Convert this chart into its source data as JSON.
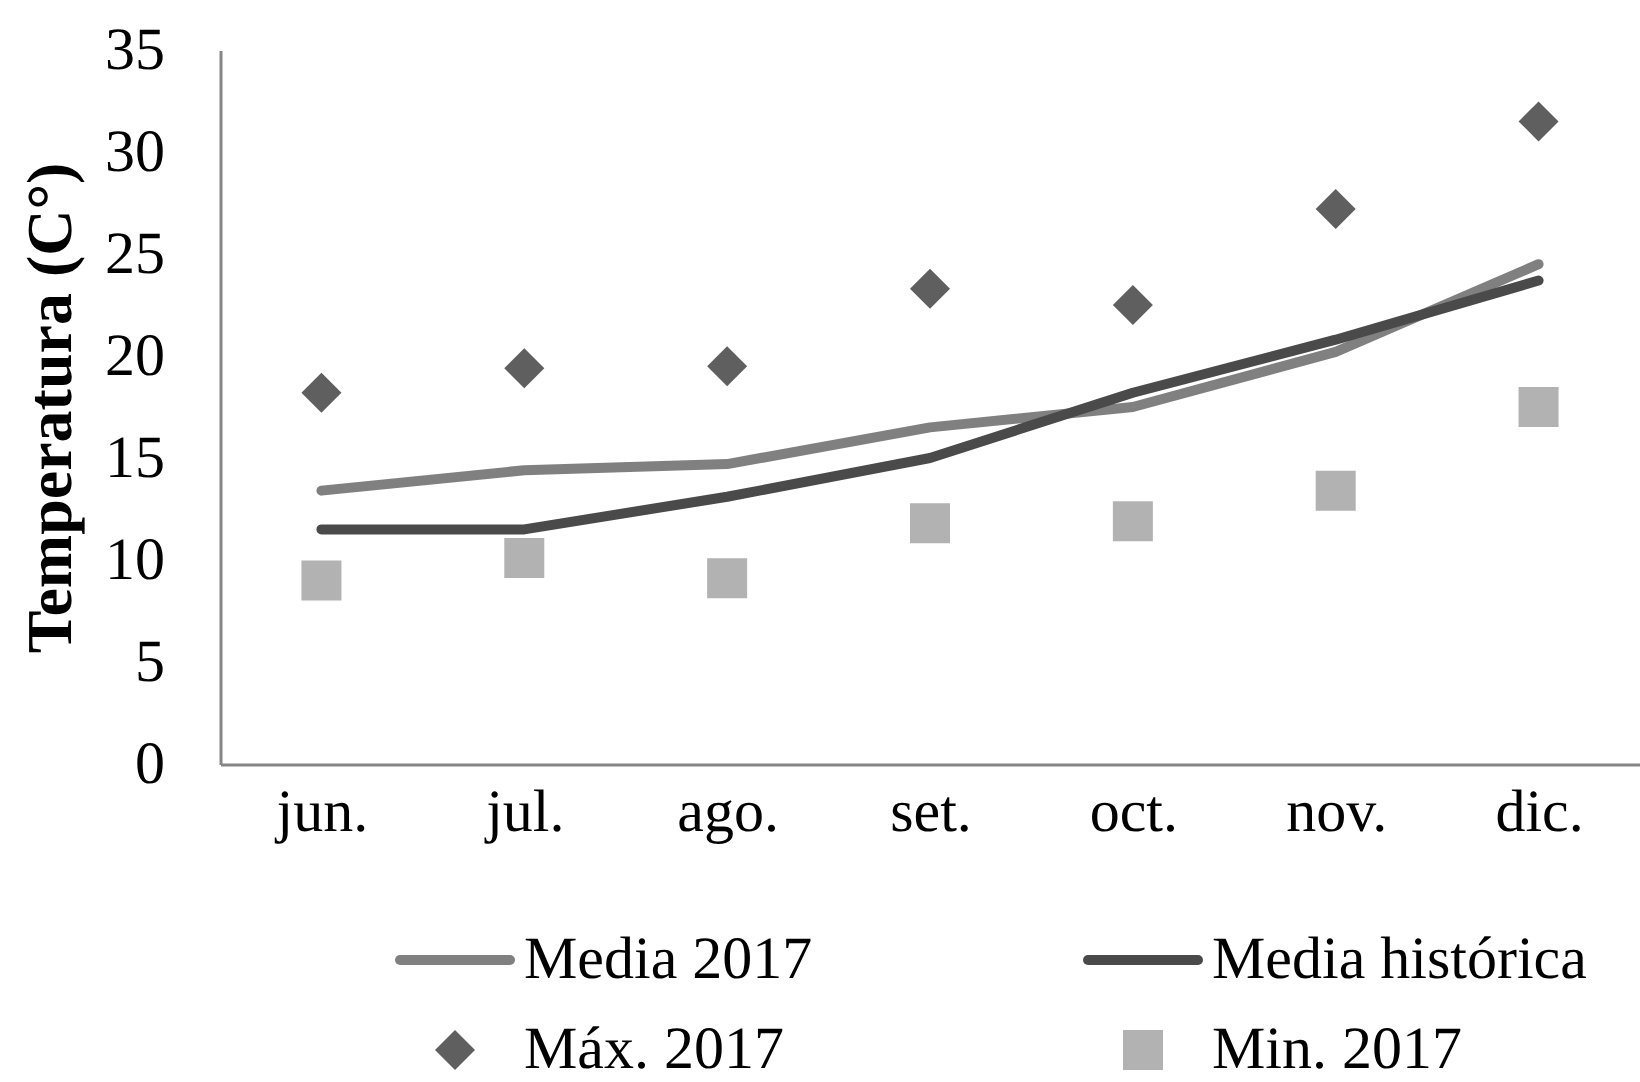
{
  "chart_data": {
    "type": "line",
    "ylabel": "Temperatura (C°)",
    "categories": [
      "jun.",
      "jul.",
      "ago.",
      "set.",
      "oct.",
      "nov.",
      "dic."
    ],
    "series": [
      {
        "name": "Media 2017",
        "color": "#808080",
        "values": [
          13.4,
          14.4,
          14.7,
          16.5,
          17.5,
          20.2,
          24.5
        ]
      },
      {
        "name": "Media histórica",
        "color": "#4a4a4a",
        "values": [
          11.5,
          11.5,
          13.1,
          15.0,
          18.2,
          20.8,
          23.7
        ]
      },
      {
        "name": "Máx. 2017",
        "type": "scatter",
        "marker": "diamond",
        "color": "#5f5f5f",
        "values": [
          18.2,
          19.4,
          19.5,
          23.3,
          22.5,
          27.2,
          31.5
        ]
      },
      {
        "name": "Min. 2017",
        "type": "scatter",
        "marker": "square",
        "color": "#b2b2b2",
        "values": [
          9.0,
          10.1,
          9.1,
          11.8,
          11.9,
          13.4,
          17.5
        ]
      }
    ],
    "ylim": [
      0,
      35
    ],
    "yticks": [
      0,
      5,
      10,
      15,
      20,
      25,
      30,
      35
    ],
    "legend": "bottom"
  }
}
